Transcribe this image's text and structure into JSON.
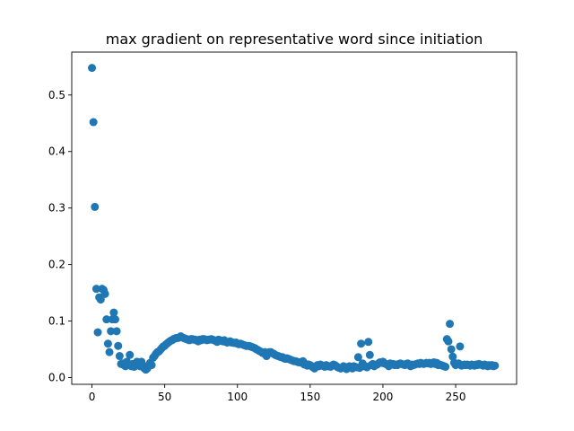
{
  "chart_data": {
    "type": "scatter",
    "title": "max gradient on representative word since initiation",
    "xlabel": "",
    "ylabel": "",
    "xlim": [
      -13.9,
      291.9
    ],
    "ylim": [
      -0.012,
      0.576
    ],
    "x_ticks": [
      0,
      50,
      100,
      150,
      200,
      250
    ],
    "y_ticks": [
      0.0,
      0.1,
      0.2,
      0.3,
      0.4,
      0.5
    ],
    "x_tick_labels": [
      "0",
      "50",
      "100",
      "150",
      "200",
      "250"
    ],
    "y_tick_labels": [
      "0.0",
      "0.1",
      "0.2",
      "0.3",
      "0.4",
      "0.5"
    ],
    "grid": false,
    "marker_color": "#1f77b4",
    "series": [
      {
        "x": [
          0,
          1,
          2,
          3,
          4,
          5,
          6,
          7,
          8,
          9,
          10,
          11,
          12,
          13,
          14,
          15,
          16,
          17,
          18,
          19,
          20,
          21,
          22,
          23,
          24,
          25,
          26,
          27,
          28,
          29,
          30,
          31,
          32,
          33,
          34,
          35,
          36,
          37,
          38,
          39,
          40,
          41,
          42,
          43,
          44,
          45,
          46,
          47,
          48,
          49,
          50,
          51,
          52,
          53,
          54,
          55,
          56,
          57,
          58,
          59,
          60,
          61,
          62,
          63,
          64,
          65,
          66,
          67,
          68,
          69,
          70,
          71,
          72,
          73,
          74,
          75,
          76,
          77,
          78,
          79,
          80,
          81,
          82,
          83,
          84,
          85,
          86,
          87,
          88,
          89,
          90,
          91,
          92,
          93,
          94,
          95,
          96,
          97,
          98,
          99,
          100,
          101,
          102,
          103,
          104,
          105,
          106,
          107,
          108,
          109,
          110,
          111,
          112,
          113,
          114,
          115,
          116,
          117,
          118,
          119,
          120,
          121,
          122,
          123,
          124,
          125,
          126,
          127,
          128,
          129,
          130,
          131,
          132,
          133,
          134,
          135,
          136,
          137,
          138,
          139,
          140,
          141,
          142,
          143,
          144,
          145,
          146,
          147,
          148,
          149,
          150,
          151,
          152,
          153,
          154,
          155,
          156,
          157,
          158,
          159,
          160,
          161,
          162,
          163,
          164,
          165,
          166,
          167,
          168,
          169,
          170,
          171,
          172,
          173,
          174,
          175,
          176,
          177,
          178,
          179,
          180,
          181,
          182,
          183,
          184,
          185,
          186,
          187,
          188,
          189,
          190,
          191,
          192,
          193,
          194,
          195,
          196,
          197,
          198,
          199,
          200,
          201,
          202,
          203,
          204,
          205,
          206,
          207,
          208,
          209,
          210,
          211,
          212,
          213,
          214,
          215,
          216,
          217,
          218,
          219,
          220,
          221,
          222,
          223,
          224,
          225,
          226,
          227,
          228,
          229,
          230,
          231,
          232,
          233,
          234,
          235,
          236,
          237,
          238,
          239,
          240,
          241,
          242,
          243,
          244,
          245,
          246,
          247,
          248,
          249,
          250,
          251,
          252,
          253,
          254,
          255,
          256,
          257,
          258,
          259,
          260,
          261,
          262,
          263,
          264,
          265,
          266,
          267,
          268,
          269,
          270,
          271,
          272,
          273,
          274,
          275,
          276,
          277
        ],
        "y": [
          0.548,
          0.452,
          0.302,
          0.157,
          0.08,
          0.142,
          0.138,
          0.157,
          0.155,
          0.148,
          0.103,
          0.06,
          0.045,
          0.082,
          0.103,
          0.115,
          0.103,
          0.082,
          0.056,
          0.038,
          0.024,
          0.025,
          0.022,
          0.02,
          0.028,
          0.023,
          0.04,
          0.02,
          0.024,
          0.019,
          0.025,
          0.028,
          0.026,
          0.02,
          0.028,
          0.022,
          0.016,
          0.014,
          0.016,
          0.02,
          0.026,
          0.022,
          0.035,
          0.038,
          0.042,
          0.045,
          0.046,
          0.049,
          0.052,
          0.055,
          0.056,
          0.059,
          0.061,
          0.063,
          0.065,
          0.066,
          0.068,
          0.069,
          0.07,
          0.07,
          0.071,
          0.073,
          0.071,
          0.07,
          0.069,
          0.068,
          0.067,
          0.066,
          0.068,
          0.068,
          0.067,
          0.067,
          0.066,
          0.064,
          0.067,
          0.066,
          0.068,
          0.068,
          0.067,
          0.066,
          0.067,
          0.067,
          0.068,
          0.067,
          0.066,
          0.065,
          0.063,
          0.067,
          0.066,
          0.065,
          0.064,
          0.066,
          0.063,
          0.062,
          0.063,
          0.064,
          0.062,
          0.062,
          0.061,
          0.062,
          0.06,
          0.059,
          0.06,
          0.059,
          0.058,
          0.057,
          0.056,
          0.056,
          0.056,
          0.055,
          0.054,
          0.053,
          0.052,
          0.05,
          0.049,
          0.047,
          0.046,
          0.044,
          0.043,
          0.045,
          0.038,
          0.043,
          0.045,
          0.045,
          0.043,
          0.042,
          0.04,
          0.039,
          0.038,
          0.037,
          0.036,
          0.036,
          0.034,
          0.033,
          0.034,
          0.033,
          0.032,
          0.031,
          0.03,
          0.029,
          0.029,
          0.028,
          0.027,
          0.027,
          0.026,
          0.029,
          0.023,
          0.024,
          0.021,
          0.023,
          0.022,
          0.02,
          0.018,
          0.016,
          0.02,
          0.022,
          0.02,
          0.023,
          0.021,
          0.021,
          0.019,
          0.022,
          0.02,
          0.02,
          0.019,
          0.021,
          0.023,
          0.022,
          0.02,
          0.018,
          0.017,
          0.016,
          0.018,
          0.02,
          0.017,
          0.015,
          0.018,
          0.02,
          0.018,
          0.016,
          0.02,
          0.019,
          0.018,
          0.036,
          0.017,
          0.06,
          0.025,
          0.02,
          0.02,
          0.018,
          0.063,
          0.04,
          0.022,
          0.024,
          0.02,
          0.022,
          0.023,
          0.025,
          0.027,
          0.026,
          0.028,
          0.025,
          0.024,
          0.023,
          0.02,
          0.025,
          0.023,
          0.024,
          0.022,
          0.023,
          0.022,
          0.024,
          0.025,
          0.024,
          0.023,
          0.022,
          0.024,
          0.025,
          0.022,
          0.02,
          0.023,
          0.022,
          0.023,
          0.024,
          0.025,
          0.024,
          0.026,
          0.025,
          0.024,
          0.025,
          0.026,
          0.025,
          0.026,
          0.024,
          0.025,
          0.027,
          0.024,
          0.026,
          0.022,
          0.023,
          0.022,
          0.021,
          0.02,
          0.019,
          0.068,
          0.064,
          0.095,
          0.05,
          0.037,
          0.026,
          0.022,
          0.024,
          0.025,
          0.055,
          0.021,
          0.022,
          0.023,
          0.022,
          0.023,
          0.022,
          0.021,
          0.023,
          0.022,
          0.021,
          0.023,
          0.022,
          0.024,
          0.023,
          0.022,
          0.021,
          0.023,
          0.022,
          0.02,
          0.022,
          0.021,
          0.022,
          0.02,
          0.021
        ]
      }
    ]
  }
}
